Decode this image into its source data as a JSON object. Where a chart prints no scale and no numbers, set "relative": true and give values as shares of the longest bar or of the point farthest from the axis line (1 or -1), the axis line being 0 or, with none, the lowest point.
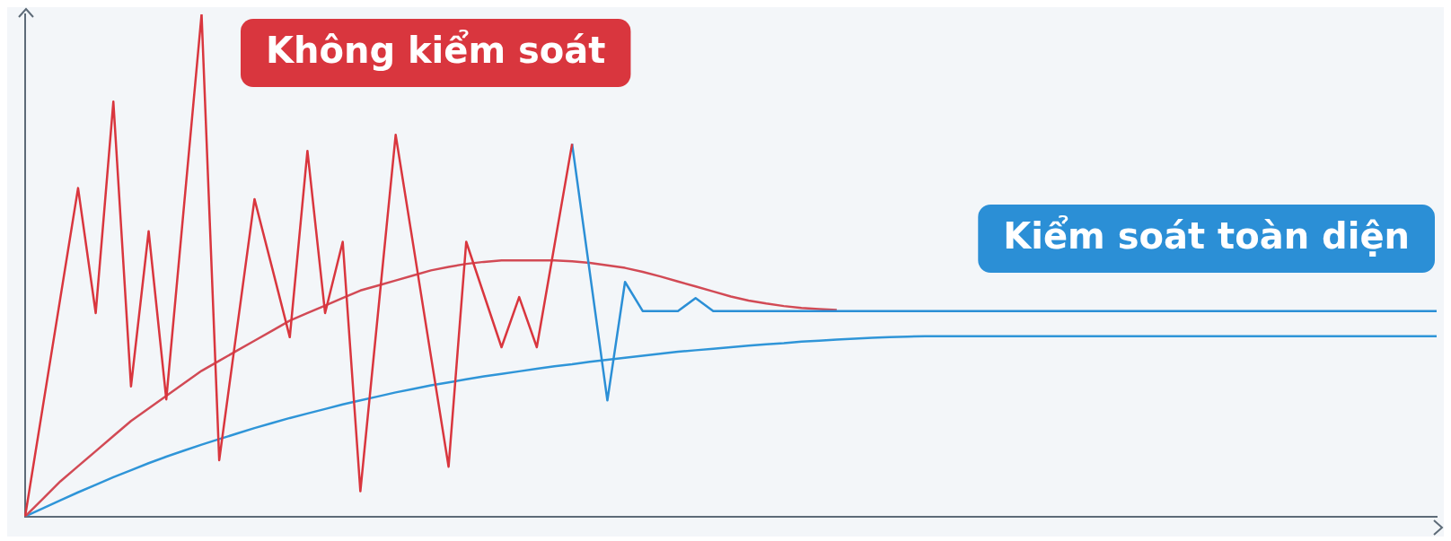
{
  "chart_data": {
    "type": "line",
    "relative": true,
    "grid": false,
    "legend": false,
    "annotations": [
      "Không kiểm soát",
      "Kiểm soát toàn diện"
    ],
    "categories": [
      null,
      null,
      null,
      null,
      null,
      null,
      null,
      null,
      null,
      null,
      null,
      null,
      null,
      null,
      null,
      null,
      null,
      null,
      null,
      null,
      null,
      null,
      null,
      null,
      null,
      null,
      null,
      null,
      null,
      null,
      null,
      null,
      null,
      null,
      null,
      null,
      null,
      null,
      null,
      null,
      null,
      null,
      null,
      null,
      null,
      null,
      null,
      null,
      null,
      null,
      null,
      null,
      null,
      null,
      null,
      null,
      null,
      null,
      null,
      null,
      null,
      null,
      null,
      null,
      null,
      null,
      null,
      null,
      null,
      null,
      null,
      null,
      null,
      null,
      null,
      null,
      null,
      null,
      null,
      null,
      null
    ],
    "series": [
      {
        "color": "#d9363e",
        "values": [
          0,
          0.218,
          0.436,
          0.654,
          0.405,
          0.826,
          0.259,
          0.568,
          0.233,
          0.617,
          1.0,
          0.112,
          0.372,
          0.632,
          0.495,
          0.357,
          0.728,
          0.405,
          0.547,
          0.05,
          0.405,
          0.76,
          0.54,
          0.319,
          0.099,
          0.547,
          0.442,
          0.337,
          0.437,
          0.337,
          0.54,
          0.742,
          null,
          null,
          null,
          null,
          null,
          null,
          null,
          null,
          null,
          null,
          null,
          null,
          null,
          null,
          null,
          null,
          null,
          null,
          null,
          null,
          null,
          null,
          null,
          null,
          null,
          null,
          null,
          null,
          null,
          null,
          null,
          null,
          null,
          null,
          null,
          null,
          null,
          null,
          null,
          null,
          null,
          null,
          null,
          null,
          null,
          null,
          null,
          null,
          null
        ]
      },
      {
        "color": "#2b8fd6",
        "values": [
          null,
          null,
          null,
          null,
          null,
          null,
          null,
          null,
          null,
          null,
          null,
          null,
          null,
          null,
          null,
          null,
          null,
          null,
          null,
          null,
          null,
          null,
          null,
          null,
          null,
          null,
          null,
          null,
          null,
          null,
          null,
          0.742,
          0.487,
          0.231,
          0.467,
          0.409,
          0.409,
          0.409,
          0.435,
          0.409,
          0.409,
          0.409,
          0.409,
          0.409,
          0.409,
          0.409,
          0.409,
          0.409,
          0.409,
          0.409,
          0.409,
          0.409,
          0.409,
          0.409,
          0.409,
          0.409,
          0.409,
          0.409,
          0.409,
          0.409,
          0.409,
          0.409,
          0.409,
          0.409,
          0.409,
          0.409,
          0.409,
          0.409,
          0.409,
          0.409,
          0.409,
          0.409,
          0.409,
          0.409,
          0.409,
          0.409,
          0.409,
          0.409,
          0.409,
          0.409,
          0.409
        ]
      },
      {
        "color": "#d24a55",
        "values": [
          0,
          0.035,
          0.07,
          0.1,
          0.13,
          0.16,
          0.19,
          0.215,
          0.24,
          0.265,
          0.29,
          0.31,
          0.33,
          0.35,
          0.37,
          0.39,
          0.405,
          0.42,
          0.435,
          0.45,
          0.46,
          0.47,
          0.48,
          0.49,
          0.497,
          0.503,
          0.507,
          0.51,
          0.51,
          0.51,
          0.51,
          0.508,
          0.505,
          0.5,
          0.495,
          0.487,
          0.478,
          0.468,
          0.458,
          0.448,
          0.438,
          0.43,
          0.424,
          0.419,
          0.415,
          0.413,
          0.411,
          null,
          null,
          null,
          null,
          null,
          null,
          null,
          null,
          null,
          null,
          null,
          null,
          null,
          null,
          null,
          null,
          null,
          null,
          null,
          null,
          null,
          null,
          null,
          null,
          null,
          null,
          null,
          null,
          null,
          null,
          null,
          null,
          null,
          null
        ]
      },
      {
        "color": "#2f95d8",
        "values": [
          0,
          0.016,
          0.032,
          0.048,
          0.063,
          0.078,
          0.092,
          0.106,
          0.119,
          0.131,
          0.143,
          0.154,
          0.165,
          0.176,
          0.186,
          0.196,
          0.205,
          0.214,
          0.223,
          0.231,
          0.239,
          0.247,
          0.254,
          0.261,
          0.267,
          0.273,
          0.279,
          0.284,
          0.289,
          0.294,
          0.299,
          0.303,
          0.308,
          0.312,
          0.316,
          0.32,
          0.324,
          0.328,
          0.331,
          0.334,
          0.337,
          0.34,
          0.343,
          0.345,
          0.348,
          0.35,
          0.352,
          0.354,
          0.356,
          0.357,
          0.358,
          0.359,
          0.359,
          0.359,
          0.359,
          0.359,
          0.359,
          0.359,
          0.359,
          0.359,
          0.359,
          0.359,
          0.359,
          0.359,
          0.359,
          0.359,
          0.359,
          0.359,
          0.359,
          0.359,
          0.359,
          0.359,
          0.359,
          0.359,
          0.359,
          0.359,
          0.359,
          0.359,
          0.359,
          0.359,
          0.359
        ]
      }
    ]
  }
}
